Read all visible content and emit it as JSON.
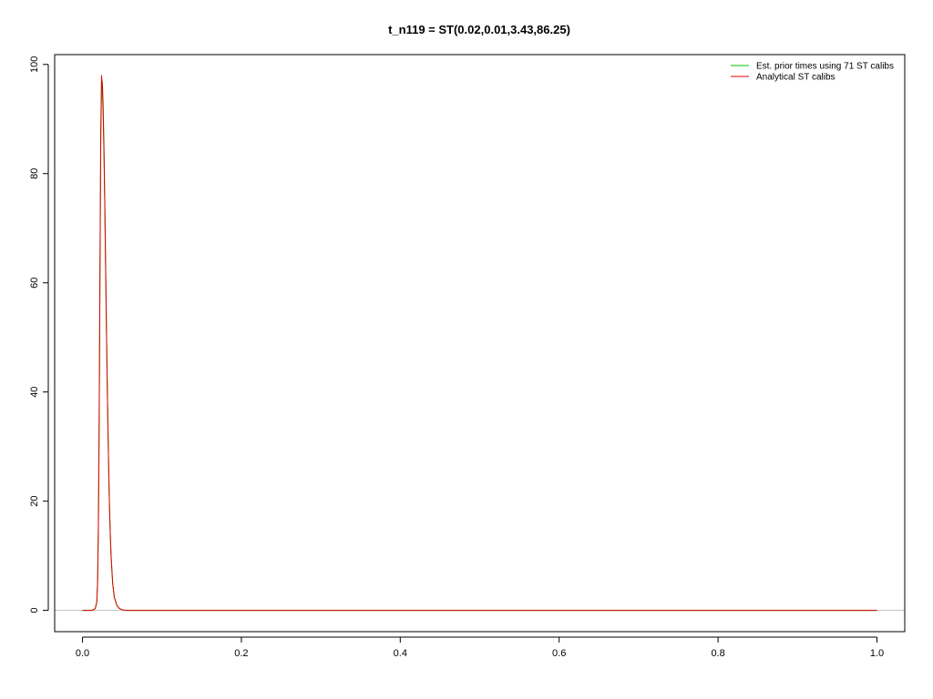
{
  "chart_data": {
    "type": "line",
    "title": "t_n119 = ST(0.02,0.01,3.43,86.25)",
    "xlabel": "",
    "ylabel": "",
    "xlim": [
      -0.035,
      1.035
    ],
    "ylim": [
      -3.9,
      101.8
    ],
    "x_ticks": [
      0.0,
      0.2,
      0.4,
      0.6,
      0.8,
      1.0
    ],
    "x_tick_labels": [
      "0.0",
      "0.2",
      "0.4",
      "0.6",
      "0.8",
      "1.0"
    ],
    "y_ticks": [
      0,
      20,
      40,
      60,
      80,
      100
    ],
    "y_tick_labels": [
      "0",
      "20",
      "40",
      "60",
      "80",
      "100"
    ],
    "grid": false,
    "baseline": 0,
    "legend_position": "top-right",
    "series": [
      {
        "name": "Est. prior times using 71 ST calibs",
        "color": "#00c000",
        "x": [
          0.0,
          0.012,
          0.016,
          0.018,
          0.019,
          0.02,
          0.021,
          0.022,
          0.023,
          0.024,
          0.025,
          0.026,
          0.027,
          0.028,
          0.029,
          0.03,
          0.031,
          0.032,
          0.033,
          0.034,
          0.035,
          0.036,
          0.038,
          0.04,
          0.043,
          0.046,
          0.05,
          0.055,
          0.06,
          0.08,
          0.1,
          0.2,
          0.4,
          0.6,
          0.8,
          1.0
        ],
        "y": [
          0,
          0,
          0.3,
          1.5,
          5,
          15,
          34,
          61,
          85,
          96,
          97,
          93,
          86,
          76,
          65,
          54,
          43,
          34,
          26,
          19,
          14,
          10,
          5,
          2.5,
          1,
          0.4,
          0.1,
          0,
          0,
          0,
          0,
          0,
          0,
          0,
          0,
          0
        ]
      },
      {
        "name": "Analytical ST calibs",
        "color": "#e00000",
        "x": [
          0.0,
          0.012,
          0.016,
          0.018,
          0.019,
          0.02,
          0.021,
          0.022,
          0.023,
          0.024,
          0.025,
          0.026,
          0.027,
          0.028,
          0.029,
          0.03,
          0.031,
          0.032,
          0.033,
          0.034,
          0.035,
          0.036,
          0.038,
          0.04,
          0.043,
          0.046,
          0.05,
          0.055,
          0.06,
          0.08,
          0.1,
          0.2,
          0.4,
          0.6,
          0.8,
          1.0
        ],
        "y": [
          0,
          0,
          0.3,
          1.5,
          5,
          15,
          34,
          61,
          87,
          98,
          96,
          91,
          84,
          75,
          64,
          53,
          43,
          34,
          26,
          19,
          14,
          10,
          5,
          2.5,
          1,
          0.4,
          0.1,
          0,
          0,
          0,
          0,
          0,
          0,
          0,
          0,
          0
        ]
      }
    ]
  }
}
